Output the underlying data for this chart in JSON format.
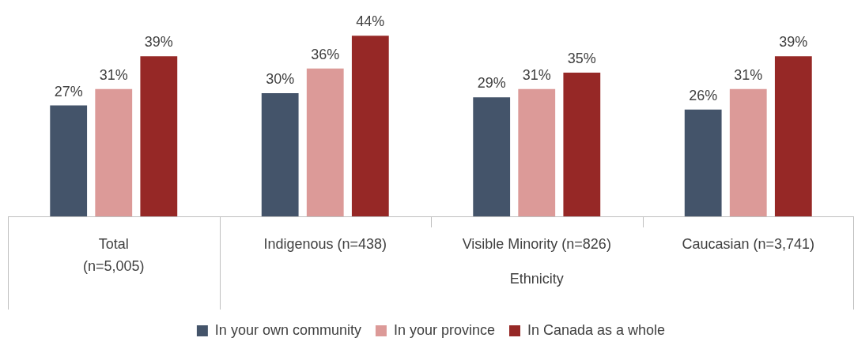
{
  "chart_data": {
    "type": "bar",
    "categories": [
      "Total\n(n=5,005)",
      "Indigenous (n=438)",
      "Visible Minority (n=826)",
      "Caucasian (n=3,741)"
    ],
    "series": [
      {
        "name": "In your own community",
        "color": "#44546a",
        "values": [
          27,
          30,
          29,
          26
        ],
        "value_labels": [
          "27%",
          "30%",
          "29%",
          "26%"
        ]
      },
      {
        "name": "In your province",
        "color": "#dc9a98",
        "values": [
          31,
          36,
          31,
          31
        ],
        "value_labels": [
          "31%",
          "36%",
          "31%",
          "31%"
        ]
      },
      {
        "name": "In Canada as a whole",
        "color": "#962826",
        "values": [
          39,
          44,
          35,
          39
        ],
        "value_labels": [
          "39%",
          "44%",
          "35%",
          "39%"
        ]
      }
    ],
    "annotations": [
      "Ethnicity"
    ],
    "grid": false,
    "legend": "bottom",
    "tick_labels": "x"
  }
}
